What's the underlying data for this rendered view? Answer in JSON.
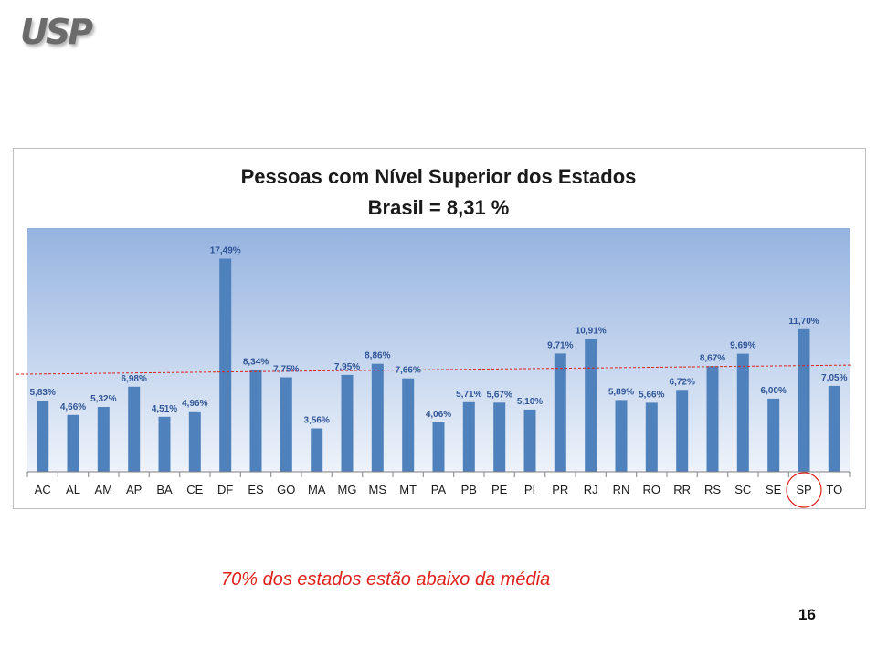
{
  "logo": {
    "text": "USP"
  },
  "chart_data": {
    "type": "bar",
    "title": "Pessoas com Nível Superior dos Estados",
    "subtitle": "Brasil = 8,31 %",
    "categories": [
      "AC",
      "AL",
      "AM",
      "AP",
      "BA",
      "CE",
      "DF",
      "ES",
      "GO",
      "MA",
      "MG",
      "MS",
      "MT",
      "PA",
      "PB",
      "PE",
      "PI",
      "PR",
      "RJ",
      "RN",
      "RO",
      "RR",
      "RS",
      "SC",
      "SE",
      "SP",
      "TO"
    ],
    "values": [
      5.83,
      4.66,
      5.32,
      6.98,
      4.51,
      4.96,
      17.49,
      8.34,
      7.75,
      3.56,
      7.95,
      8.86,
      7.66,
      4.06,
      5.71,
      5.67,
      5.1,
      9.71,
      10.91,
      5.89,
      5.66,
      6.72,
      8.67,
      9.69,
      6.0,
      11.7,
      7.05
    ],
    "value_labels": [
      "5,83%",
      "4,66%",
      "5,32%",
      "6,98%",
      "4,51%",
      "4,96%",
      "17,49%",
      "8,34%",
      "7,75%",
      "3,56%",
      "7,95%",
      "8,86%",
      "7,66%",
      "4,06%",
      "5,71%",
      "5,67%",
      "5,10%",
      "9,71%",
      "10,91%",
      "5,89%",
      "5,66%",
      "6,72%",
      "8,67%",
      "9,69%",
      "6,00%",
      "11,70%",
      "7,05%"
    ],
    "reference_line": 8.31,
    "highlighted_category": "SP",
    "ylim": [
      0,
      20
    ],
    "grid": false,
    "colors": {
      "bar": "#4f81bd",
      "plot_bg_top": "#95b3e0",
      "plot_bg_bottom": "#eef3fa",
      "reference_line": "#e0201b",
      "highlight_circle": "#e0201b",
      "value_label": "#2f5597",
      "axis_label": "#1a1a1a"
    }
  },
  "caption": "70% dos estados estão  abaixo da média",
  "page_number": "16"
}
